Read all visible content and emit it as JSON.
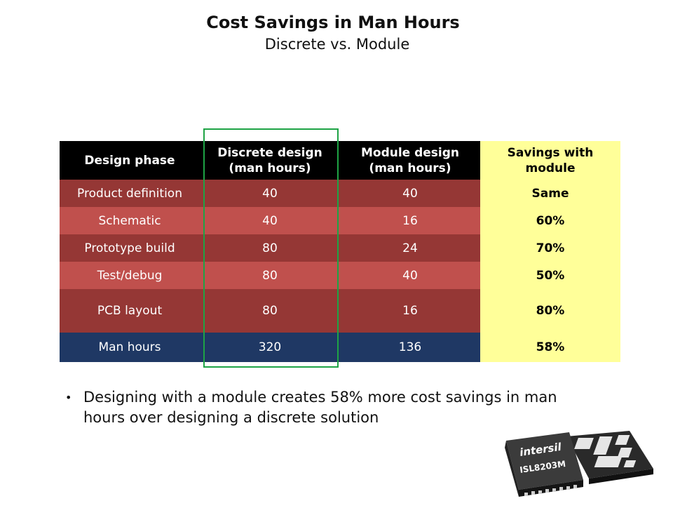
{
  "slide": {
    "title": "Cost Savings in Man Hours",
    "subtitle": "Discrete vs. Module"
  },
  "table": {
    "headers": [
      "Design phase",
      "Discrete design\n(man hours)",
      "Module design\n(man hours)",
      "Savings with\nmodule"
    ],
    "rows": [
      {
        "phase": "Product definition",
        "discrete": "40",
        "module": "40",
        "savings": "Same"
      },
      {
        "phase": "Schematic",
        "discrete": "40",
        "module": "16",
        "savings": "60%"
      },
      {
        "phase": "Prototype build",
        "discrete": "80",
        "module": "24",
        "savings": "70%"
      },
      {
        "phase": "Test/debug",
        "discrete": "80",
        "module": "40",
        "savings": "50%"
      },
      {
        "phase": "PCB layout",
        "discrete": "80",
        "module": "16",
        "savings": "80%"
      }
    ],
    "total": {
      "phase": "Man hours",
      "discrete": "320",
      "module": "136",
      "savings": "58%"
    }
  },
  "bullet": {
    "text": "Designing with a module creates 58% more cost savings in man hours over designing a discrete solution"
  },
  "chip": {
    "brand": "intersil",
    "part": "ISL8203M"
  },
  "colors": {
    "header_bg": "#000000",
    "row_dark": "#953735",
    "row_light": "#c0504d",
    "total_row": "#1f3864",
    "savings_col": "#ffff99",
    "highlight_border": "#1ea345"
  }
}
